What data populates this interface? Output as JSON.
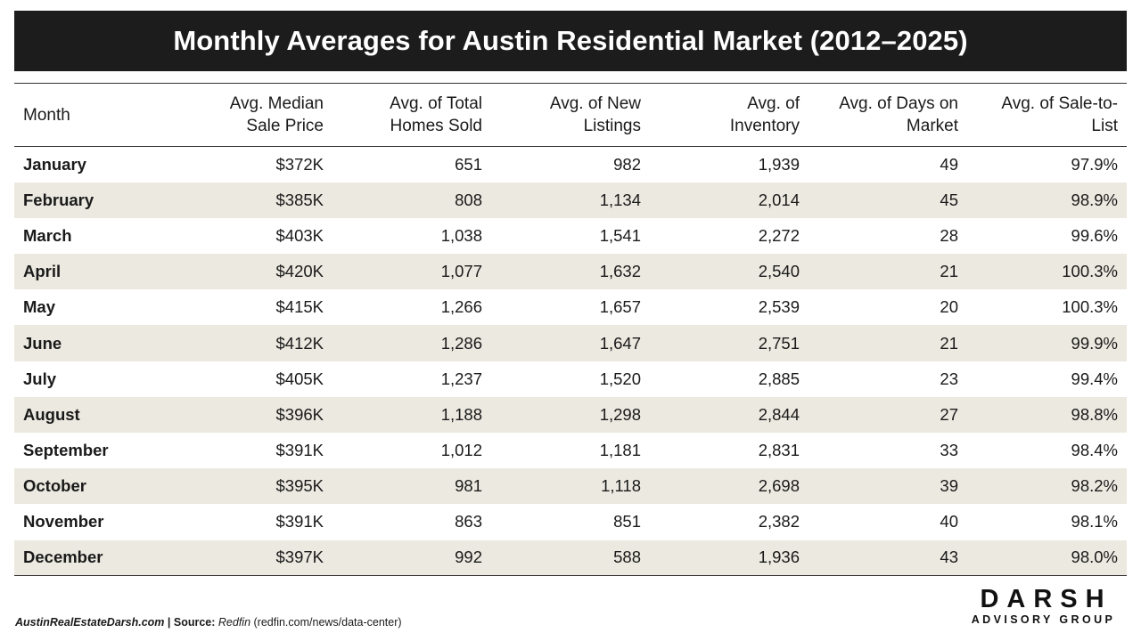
{
  "title": "Monthly Averages for Austin Residential Market (2012–2025)",
  "chart_data": {
    "type": "table",
    "title": "Monthly Averages for Austin Residential Market (2012–2025)",
    "columns": [
      {
        "line1": "Month",
        "line2": ""
      },
      {
        "line1": "Avg. Median",
        "line2": "Sale Price"
      },
      {
        "line1": "Avg. of Total",
        "line2": "Homes Sold"
      },
      {
        "line1": "Avg. of New",
        "line2": "Listings"
      },
      {
        "line1": "Avg. of",
        "line2": "Inventory"
      },
      {
        "line1": "Avg. of Days on",
        "line2": "Market"
      },
      {
        "line1": "Avg. of Sale-to-",
        "line2": "List"
      }
    ],
    "rows": [
      [
        "January",
        "$372K",
        "651",
        "982",
        "1,939",
        "49",
        "97.9%"
      ],
      [
        "February",
        "$385K",
        "808",
        "1,134",
        "2,014",
        "45",
        "98.9%"
      ],
      [
        "March",
        "$403K",
        "1,038",
        "1,541",
        "2,272",
        "28",
        "99.6%"
      ],
      [
        "April",
        "$420K",
        "1,077",
        "1,632",
        "2,540",
        "21",
        "100.3%"
      ],
      [
        "May",
        "$415K",
        "1,266",
        "1,657",
        "2,539",
        "20",
        "100.3%"
      ],
      [
        "June",
        "$412K",
        "1,286",
        "1,647",
        "2,751",
        "21",
        "99.9%"
      ],
      [
        "July",
        "$405K",
        "1,237",
        "1,520",
        "2,885",
        "23",
        "99.4%"
      ],
      [
        "August",
        "$396K",
        "1,188",
        "1,298",
        "2,844",
        "27",
        "98.8%"
      ],
      [
        "September",
        "$391K",
        "1,012",
        "1,181",
        "2,831",
        "33",
        "98.4%"
      ],
      [
        "October",
        "$395K",
        "981",
        "1,118",
        "2,698",
        "39",
        "98.2%"
      ],
      [
        "November",
        "$391K",
        "863",
        "851",
        "2,382",
        "40",
        "98.1%"
      ],
      [
        "December",
        "$397K",
        "992",
        "588",
        "1,936",
        "43",
        "98.0%"
      ]
    ]
  },
  "footer": {
    "site": "AustinRealEstateDarsh.com",
    "separator": " | ",
    "source_label": "Source:",
    "source_name": " Redfin",
    "source_url": " (redfin.com/news/data-center)"
  },
  "logo": {
    "main": "DARSH",
    "sub": "ADVISORY GROUP"
  },
  "colors": {
    "title_bg": "#1c1c1c",
    "title_text": "#ffffff",
    "stripe": "#ebe9e0",
    "rule": "#333333"
  }
}
